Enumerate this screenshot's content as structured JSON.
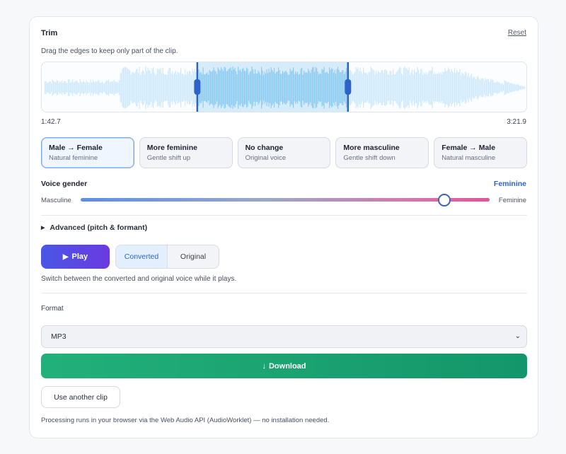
{
  "trim": {
    "title": "Trim",
    "reset_label": "Reset",
    "hint": "Drag the edges to keep only part of the clip.",
    "start_time": "1:42.7",
    "end_time": "3:21.9",
    "selection_start_fraction": 0.32,
    "selection_end_fraction": 0.63
  },
  "presets": [
    {
      "title": "Male → Female",
      "subtitle": "Natural feminine",
      "active": true
    },
    {
      "title": "More feminine",
      "subtitle": "Gentle shift up",
      "active": false
    },
    {
      "title": "No change",
      "subtitle": "Original voice",
      "active": false
    },
    {
      "title": "More masculine",
      "subtitle": "Gentle shift down",
      "active": false
    },
    {
      "title": "Female → Male",
      "subtitle": "Natural masculine",
      "active": false
    }
  ],
  "voice_gender": {
    "label": "Voice gender",
    "value_label": "Feminine",
    "left_label": "Masculine",
    "right_label": "Feminine",
    "slider_fraction": 0.89
  },
  "advanced": {
    "label": "Advanced (pitch & formant)"
  },
  "playback": {
    "play_label": "Play",
    "toggle_options": [
      "Converted",
      "Original"
    ],
    "selected": "Converted",
    "hint": "Switch between the converted and original voice while it plays."
  },
  "format": {
    "label": "Format",
    "selected": "MP3"
  },
  "actions": {
    "download_label": "Download",
    "another_label": "Use another clip"
  },
  "footer": "Processing runs in your browser via the Web Audio API (AudioWorklet) — no installation needed.",
  "colors": {
    "accent_blue": "#2e63d6",
    "wave_selected": "#8ecdf2",
    "wave_unselected": "#cfe9fb",
    "handle": "#2d63c8",
    "download_green": "#18a070",
    "play_gradient_start": "#4a56e6",
    "play_gradient_end": "#6a3ae0"
  }
}
